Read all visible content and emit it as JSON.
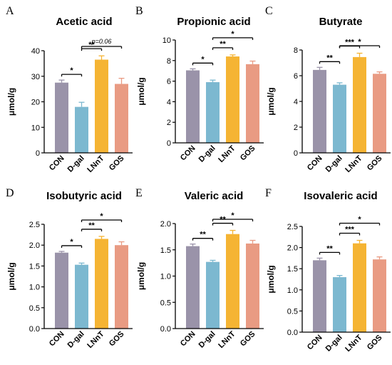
{
  "colors": {
    "CON": "#9a93a9",
    "D-gal": "#7cb8d0",
    "LNnT": "#f5b433",
    "GOS": "#e99b83",
    "axis": "#000000"
  },
  "chart_data": [
    {
      "panel": "A",
      "type": "bar",
      "title": "Acetic acid",
      "ylabel": "μmol/g",
      "categories": [
        "CON",
        "D-gal",
        "LNnT",
        "GOS"
      ],
      "values": [
        27.5,
        18,
        36.5,
        27
      ],
      "errors": [
        1.0,
        1.8,
        1.5,
        2.2
      ],
      "ylim": [
        0,
        40
      ],
      "yticks": [
        "0",
        "10",
        "20",
        "30",
        "40"
      ],
      "significance": [
        {
          "from": 0,
          "to": 1,
          "label": "*"
        },
        {
          "from": 1,
          "to": 2,
          "label": "**"
        },
        {
          "from": 1,
          "to": 3,
          "label": "p=0.06"
        }
      ]
    },
    {
      "panel": "B",
      "type": "bar",
      "title": "Propionic acid",
      "ylabel": "μmol/g",
      "categories": [
        "CON",
        "D-gal",
        "LNnT",
        "GOS"
      ],
      "values": [
        7.05,
        5.9,
        8.4,
        7.65
      ],
      "errors": [
        0.15,
        0.2,
        0.15,
        0.3
      ],
      "ylim": [
        0,
        10
      ],
      "yticks": [
        "0",
        "2",
        "4",
        "6",
        "8",
        "10"
      ],
      "significance": [
        {
          "from": 0,
          "to": 1,
          "label": "*"
        },
        {
          "from": 1,
          "to": 2,
          "label": "**"
        },
        {
          "from": 1,
          "to": 3,
          "label": "*"
        }
      ]
    },
    {
      "panel": "C",
      "type": "bar",
      "title": "Butyrate",
      "ylabel": "μmol/g",
      "categories": [
        "CON",
        "D-gal",
        "LNnT",
        "GOS"
      ],
      "values": [
        6.45,
        5.3,
        7.45,
        6.15
      ],
      "errors": [
        0.2,
        0.15,
        0.3,
        0.15
      ],
      "ylim": [
        0,
        8
      ],
      "yticks": [
        "0",
        "2",
        "4",
        "6",
        "8"
      ],
      "significance": [
        {
          "from": 0,
          "to": 1,
          "label": "**"
        },
        {
          "from": 1,
          "to": 2,
          "label": "***"
        },
        {
          "from": 1,
          "to": 3,
          "label": "*"
        }
      ]
    },
    {
      "panel": "D",
      "type": "bar",
      "title": "Isobutyric acid",
      "ylabel": "μmol/g",
      "categories": [
        "CON",
        "D-gal",
        "LNnT",
        "GOS"
      ],
      "values": [
        1.82,
        1.53,
        2.15,
        2.0
      ],
      "errors": [
        0.03,
        0.04,
        0.06,
        0.08
      ],
      "ylim": [
        0,
        2.5
      ],
      "yticks": [
        "0.0",
        "0.5",
        "1.0",
        "1.5",
        "2.0",
        "2.5"
      ],
      "significance": [
        {
          "from": 0,
          "to": 1,
          "label": "*"
        },
        {
          "from": 1,
          "to": 2,
          "label": "**"
        },
        {
          "from": 1,
          "to": 3,
          "label": "*"
        }
      ]
    },
    {
      "panel": "E",
      "type": "bar",
      "title": "Valeric acid",
      "ylabel": "μmol/g",
      "categories": [
        "CON",
        "D-gal",
        "LNnT",
        "GOS"
      ],
      "values": [
        1.57,
        1.27,
        1.8,
        1.62
      ],
      "errors": [
        0.04,
        0.03,
        0.07,
        0.06
      ],
      "ylim": [
        0,
        2.0
      ],
      "yticks": [
        "0.0",
        "0.5",
        "1.0",
        "1.5",
        "2.0"
      ],
      "significance": [
        {
          "from": 0,
          "to": 1,
          "label": "**"
        },
        {
          "from": 1,
          "to": 2,
          "label": "**"
        },
        {
          "from": 1,
          "to": 3,
          "label": "*"
        }
      ]
    },
    {
      "panel": "F",
      "type": "bar",
      "title": "Isovaleric acid",
      "ylabel": "μmol/g",
      "categories": [
        "CON",
        "D-gal",
        "LNnT",
        "GOS"
      ],
      "values": [
        1.7,
        1.3,
        2.1,
        1.72
      ],
      "errors": [
        0.05,
        0.04,
        0.07,
        0.06
      ],
      "ylim": [
        0,
        2.5
      ],
      "yticks": [
        "0.0",
        "0.5",
        "1.0",
        "1.5",
        "2.0",
        "2.5"
      ],
      "significance": [
        {
          "from": 0,
          "to": 1,
          "label": "**"
        },
        {
          "from": 1,
          "to": 2,
          "label": "***"
        },
        {
          "from": 1,
          "to": 3,
          "label": "*"
        }
      ]
    }
  ]
}
